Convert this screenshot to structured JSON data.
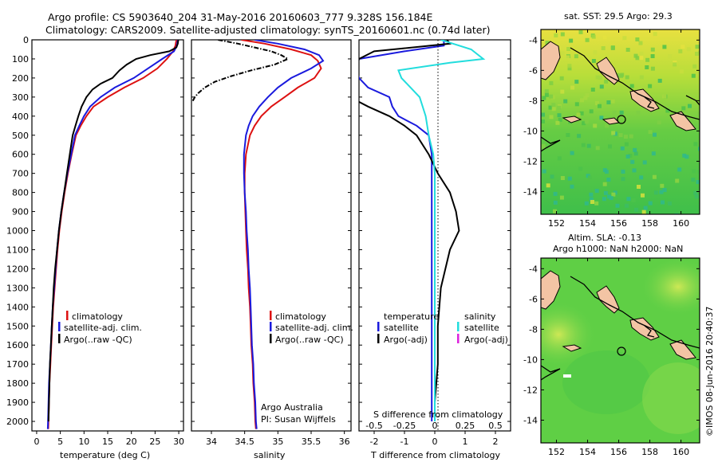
{
  "header": {
    "line1": "Argo profile: CS 5903640_204 31-May-2016 20160603_777 9.328S 156.184E",
    "line2": "Climatology: CARS2009. Satellite-adjusted climatology: synTS_20160601.nc (0.74d later)"
  },
  "credit": "©IMOS 08-Jun-2016 20:40:37",
  "colors": {
    "climatology": "#dd1111",
    "satellite": "#1a1add",
    "argo": "#000000",
    "salinity_satellite": "#22dddd",
    "salinity_argo": "#dd22dd"
  },
  "chart_data": [
    {
      "type": "line",
      "name": "temperature-profile",
      "xlabel": "temperature (deg C)",
      "ylim": [
        2050,
        0
      ],
      "xlim": [
        -1,
        31
      ],
      "xticks": [
        "0",
        "5",
        "10",
        "15",
        "20",
        "25",
        "30"
      ],
      "yticks": [
        "0",
        "100",
        "200",
        "300",
        "400",
        "500",
        "600",
        "700",
        "800",
        "900",
        "1000",
        "1100",
        "1200",
        "1300",
        "1400",
        "1500",
        "1600",
        "1700",
        "1800",
        "1900",
        "2000"
      ],
      "legend": [
        "climatology",
        "satellite-adj. clim.",
        "Argo(..raw -QC)"
      ],
      "series": [
        {
          "name": "climatology",
          "color": "#dd1111",
          "points": [
            [
              29.5,
              0
            ],
            [
              29.3,
              30
            ],
            [
              28.8,
              60
            ],
            [
              27.5,
              100
            ],
            [
              25.5,
              150
            ],
            [
              22.5,
              200
            ],
            [
              18.5,
              250
            ],
            [
              15,
              300
            ],
            [
              12,
              350
            ],
            [
              10.5,
              400
            ],
            [
              9.3,
              450
            ],
            [
              8.3,
              500
            ],
            [
              7.4,
              600
            ],
            [
              6.6,
              700
            ],
            [
              5.9,
              800
            ],
            [
              5.3,
              900
            ],
            [
              4.8,
              1000
            ],
            [
              4.4,
              1100
            ],
            [
              4.1,
              1200
            ],
            [
              3.8,
              1300
            ],
            [
              3.5,
              1400
            ],
            [
              3.3,
              1500
            ],
            [
              3.1,
              1600
            ],
            [
              2.9,
              1700
            ],
            [
              2.7,
              1800
            ],
            [
              2.6,
              1900
            ],
            [
              2.5,
              2000
            ],
            [
              2.45,
              2040
            ]
          ]
        },
        {
          "name": "satellite-adj. clim.",
          "color": "#1a1add",
          "points": [
            [
              29.8,
              0
            ],
            [
              29.6,
              30
            ],
            [
              29,
              60
            ],
            [
              26.5,
              100
            ],
            [
              23.5,
              150
            ],
            [
              20.5,
              200
            ],
            [
              16.5,
              250
            ],
            [
              13.5,
              300
            ],
            [
              11.3,
              350
            ],
            [
              10,
              400
            ],
            [
              9,
              450
            ],
            [
              8.1,
              500
            ],
            [
              7.3,
              600
            ],
            [
              6.5,
              700
            ],
            [
              5.8,
              800
            ],
            [
              5.2,
              900
            ],
            [
              4.7,
              1000
            ],
            [
              4.3,
              1100
            ],
            [
              4,
              1200
            ],
            [
              3.7,
              1300
            ],
            [
              3.4,
              1400
            ],
            [
              3.2,
              1500
            ],
            [
              3,
              1600
            ],
            [
              2.8,
              1700
            ],
            [
              2.6,
              1800
            ],
            [
              2.5,
              1900
            ],
            [
              2.4,
              2000
            ],
            [
              2.35,
              2040
            ]
          ]
        },
        {
          "name": "Argo(..raw -QC)",
          "color": "#000000",
          "points": [
            [
              29.9,
              0
            ],
            [
              29.8,
              20
            ],
            [
              29.5,
              40
            ],
            [
              28,
              60
            ],
            [
              24,
              80
            ],
            [
              21,
              100
            ],
            [
              19,
              130
            ],
            [
              17.5,
              160
            ],
            [
              16,
              200
            ],
            [
              13.5,
              230
            ],
            [
              11.8,
              260
            ],
            [
              10.5,
              300
            ],
            [
              9.5,
              350
            ],
            [
              8.8,
              400
            ],
            [
              8.2,
              450
            ],
            [
              7.6,
              500
            ],
            [
              7,
              600
            ],
            [
              6.4,
              700
            ],
            [
              5.8,
              800
            ],
            [
              5.2,
              900
            ],
            [
              4.7,
              1000
            ],
            [
              4.3,
              1100
            ],
            [
              3.9,
              1200
            ],
            [
              3.6,
              1300
            ],
            [
              3.4,
              1400
            ],
            [
              3.2,
              1500
            ],
            [
              3,
              1600
            ],
            [
              2.8,
              1700
            ],
            [
              2.7,
              1800
            ],
            [
              2.6,
              1900
            ],
            [
              2.5,
              2000
            ]
          ]
        }
      ]
    },
    {
      "type": "line",
      "name": "salinity-profile",
      "xlabel": "salinity",
      "ylim": [
        2050,
        0
      ],
      "xlim": [
        33.7,
        36.1
      ],
      "xticks": [
        "34",
        "34.5",
        "35",
        "35.5",
        "36"
      ],
      "legend": [
        "climatology",
        "satellite-adj. clim.",
        "Argo(..raw -QC)"
      ],
      "annotation": [
        "Argo Australia",
        "PI: Susan Wijffels"
      ],
      "series": [
        {
          "name": "climatology",
          "color": "#dd1111",
          "points": [
            [
              34.45,
              0
            ],
            [
              34.8,
              20
            ],
            [
              35.2,
              50
            ],
            [
              35.5,
              80
            ],
            [
              35.6,
              110
            ],
            [
              35.65,
              150
            ],
            [
              35.55,
              200
            ],
            [
              35.3,
              250
            ],
            [
              35.1,
              300
            ],
            [
              34.9,
              350
            ],
            [
              34.75,
              400
            ],
            [
              34.65,
              450
            ],
            [
              34.58,
              500
            ],
            [
              34.52,
              600
            ],
            [
              34.5,
              700
            ],
            [
              34.5,
              800
            ],
            [
              34.51,
              900
            ],
            [
              34.52,
              1000
            ],
            [
              34.53,
              1100
            ],
            [
              34.55,
              1200
            ],
            [
              34.56,
              1300
            ],
            [
              34.58,
              1400
            ],
            [
              34.59,
              1500
            ],
            [
              34.6,
              1600
            ],
            [
              34.62,
              1700
            ],
            [
              34.63,
              1800
            ],
            [
              34.65,
              1900
            ],
            [
              34.66,
              2000
            ],
            [
              34.67,
              2040
            ]
          ]
        },
        {
          "name": "satellite-adj. clim.",
          "color": "#1a1add",
          "points": [
            [
              34.65,
              0
            ],
            [
              35,
              20
            ],
            [
              35.4,
              50
            ],
            [
              35.62,
              80
            ],
            [
              35.68,
              110
            ],
            [
              35.5,
              150
            ],
            [
              35.2,
              200
            ],
            [
              35,
              250
            ],
            [
              34.85,
              300
            ],
            [
              34.72,
              350
            ],
            [
              34.62,
              400
            ],
            [
              34.56,
              450
            ],
            [
              34.52,
              500
            ],
            [
              34.49,
              600
            ],
            [
              34.49,
              700
            ],
            [
              34.5,
              800
            ],
            [
              34.52,
              900
            ],
            [
              34.53,
              1000
            ],
            [
              34.55,
              1100
            ],
            [
              34.56,
              1200
            ],
            [
              34.58,
              1300
            ],
            [
              34.59,
              1400
            ],
            [
              34.6,
              1500
            ],
            [
              34.61,
              1600
            ],
            [
              34.63,
              1700
            ],
            [
              34.64,
              1800
            ],
            [
              34.66,
              1900
            ],
            [
              34.67,
              2000
            ],
            [
              34.68,
              2040
            ]
          ]
        },
        {
          "name": "Argo(..raw -QC)",
          "color": "#000000",
          "points": [
            [
              34.1,
              0
            ],
            [
              34.4,
              20
            ],
            [
              34.9,
              60
            ],
            [
              35.05,
              80
            ],
            [
              35.15,
              100
            ],
            [
              34.95,
              130
            ],
            [
              34.6,
              160
            ],
            [
              34.3,
              190
            ],
            [
              34.05,
              220
            ],
            [
              33.9,
              250
            ],
            [
              33.8,
              280
            ],
            [
              33.75,
              300
            ],
            [
              33.72,
              320
            ]
          ]
        }
      ]
    },
    {
      "type": "line",
      "name": "difference-profile",
      "xlabel": "T difference from climatology",
      "xlabel_top": "S difference from climatology",
      "ylim": [
        2050,
        0
      ],
      "xlim": [
        -2.5,
        2.5
      ],
      "xticks": [
        "-2",
        "-1",
        "0",
        "1",
        "2"
      ],
      "xticks_top": [
        "-0.5",
        "-0.25",
        "0",
        "0.25",
        "0.5"
      ],
      "legend_temperature_title": "temperature",
      "legend_salinity_title": "salinity",
      "legend_temperature": [
        "satellite",
        "Argo(-adj)"
      ],
      "legend_salinity": [
        "satellite",
        "Argo(-adj)"
      ],
      "series": [
        {
          "name": "temperature satellite",
          "color": "#1a1add",
          "points": [
            [
              0.3,
              0
            ],
            [
              0.3,
              30
            ],
            [
              -1,
              60
            ],
            [
              -2.5,
              100
            ],
            [
              -2.6,
              150
            ],
            [
              -2.5,
              200
            ],
            [
              -2.2,
              250
            ],
            [
              -1.5,
              300
            ],
            [
              -1.4,
              350
            ],
            [
              -1.2,
              400
            ],
            [
              -0.6,
              450
            ],
            [
              -0.2,
              500
            ],
            [
              -0.1,
              600
            ],
            [
              -0.1,
              700
            ],
            [
              -0.1,
              800
            ],
            [
              -0.1,
              900
            ],
            [
              -0.1,
              1000
            ],
            [
              -0.1,
              1200
            ],
            [
              -0.1,
              1400
            ],
            [
              -0.1,
              1600
            ],
            [
              -0.1,
              1800
            ],
            [
              -0.1,
              2000
            ]
          ]
        },
        {
          "name": "temperature Argo(-adj)",
          "color": "#000000",
          "points": [
            [
              0.4,
              0
            ],
            [
              0.5,
              20
            ],
            [
              -2,
              60
            ],
            [
              -2.5,
              100
            ],
            [
              -2.8,
              300
            ],
            [
              -2.2,
              350
            ],
            [
              -1.5,
              400
            ],
            [
              -1,
              450
            ],
            [
              -0.6,
              500
            ],
            [
              -0.2,
              600
            ],
            [
              0.1,
              700
            ],
            [
              0.5,
              800
            ],
            [
              0.7,
              900
            ],
            [
              0.8,
              1000
            ],
            [
              0.5,
              1100
            ],
            [
              0.2,
              1300
            ],
            [
              0.1,
              1500
            ],
            [
              0.1,
              1700
            ],
            [
              0,
              1900
            ],
            [
              0,
              2000
            ]
          ]
        },
        {
          "name": "salinity satellite",
          "color": "#22dddd",
          "points": [
            [
              0.2,
              0
            ],
            [
              0.6,
              20
            ],
            [
              1.2,
              50
            ],
            [
              1.6,
              100
            ],
            [
              0.5,
              120
            ],
            [
              -1.2,
              160
            ],
            [
              -1.1,
              200
            ],
            [
              -0.5,
              300
            ],
            [
              -0.3,
              400
            ],
            [
              -0.2,
              500
            ],
            [
              -0.05,
              600
            ],
            [
              0,
              700
            ],
            [
              0,
              800
            ],
            [
              0,
              1000
            ],
            [
              0,
              1200
            ],
            [
              0,
              1400
            ],
            [
              0,
              1600
            ],
            [
              0,
              1800
            ],
            [
              0,
              2000
            ]
          ]
        }
      ]
    },
    {
      "type": "heatmap",
      "name": "sst-map",
      "title": "sat. SST: 29.5 Argo: 29.3",
      "xlim": [
        151,
        161.2
      ],
      "ylim": [
        -15.5,
        -3.3
      ],
      "xticks": [
        "152",
        "154",
        "156",
        "158",
        "160"
      ],
      "yticks": [
        "-4",
        "-6",
        "-8",
        "-10",
        "-12",
        "-14"
      ],
      "marker": [
        156.18,
        -9.33
      ]
    },
    {
      "type": "heatmap",
      "name": "sla-map",
      "title": "Altim. SLA: -0.13",
      "subtitle": "Argo h1000: NaN h2000: NaN",
      "xlim": [
        151,
        161.2
      ],
      "ylim": [
        -15.5,
        -3.3
      ],
      "xticks": [
        "152",
        "154",
        "156",
        "158",
        "160"
      ],
      "yticks": [
        "-4",
        "-6",
        "-8",
        "-10",
        "-12",
        "-14"
      ],
      "marker": [
        156.18,
        -9.33
      ]
    }
  ]
}
